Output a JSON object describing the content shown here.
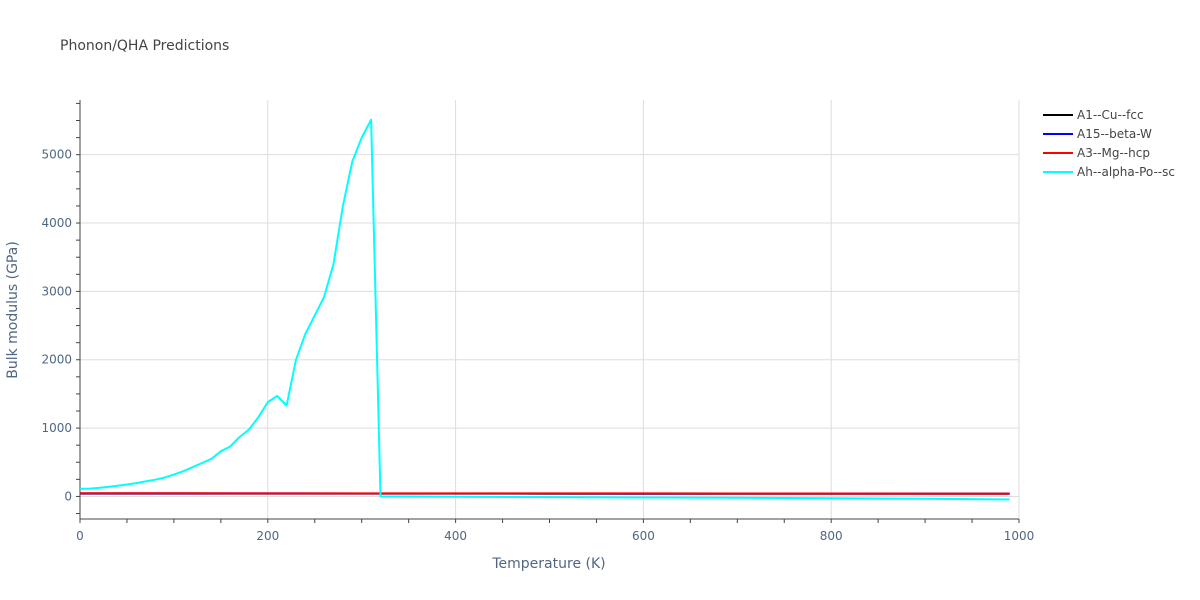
{
  "chart_data": {
    "type": "line",
    "title": "Phonon/QHA Predictions",
    "xlabel": "Temperature (K)",
    "ylabel": "Bulk modulus (GPa)",
    "xlim": [
      0,
      1000
    ],
    "ylim": [
      -330,
      5800
    ],
    "x_ticks": [
      0,
      200,
      400,
      600,
      800,
      1000
    ],
    "y_ticks": [
      0,
      1000,
      2000,
      3000,
      4000,
      5000
    ],
    "grid": true,
    "legend_position": "top-right",
    "series": [
      {
        "name": "A1--Cu--fcc",
        "color": "#000000",
        "x": [
          0,
          100,
          200,
          300,
          400,
          500,
          600,
          700,
          800,
          900,
          990
        ],
        "y": [
          42,
          42,
          42,
          41,
          41,
          40,
          40,
          39,
          39,
          38,
          38
        ]
      },
      {
        "name": "A15--beta-W",
        "color": "#0000ff",
        "x": [
          0,
          100,
          200,
          300,
          400,
          500,
          600,
          700,
          800,
          900,
          990
        ],
        "y": [
          44,
          44,
          44,
          43,
          43,
          43,
          42,
          42,
          42,
          41,
          41
        ]
      },
      {
        "name": "A3--Mg--hcp",
        "color": "#ff0000",
        "x": [
          0,
          100,
          200,
          300,
          400,
          500,
          600,
          700,
          800,
          900,
          990
        ],
        "y": [
          46,
          46,
          45,
          45,
          45,
          44,
          44,
          43,
          43,
          42,
          42
        ]
      },
      {
        "name": "Ah--alpha-Po--sc",
        "color": "#00ffff",
        "x": [
          0,
          10,
          20,
          30,
          40,
          50,
          60,
          70,
          80,
          90,
          100,
          110,
          120,
          130,
          140,
          150,
          160,
          170,
          180,
          190,
          200,
          210,
          220,
          230,
          240,
          250,
          260,
          270,
          280,
          290,
          300,
          310,
          320,
          400,
          500,
          600,
          700,
          800,
          900,
          990
        ],
        "y": [
          110,
          115,
          125,
          140,
          155,
          175,
          195,
          220,
          245,
          275,
          320,
          370,
          430,
          490,
          550,
          660,
          730,
          870,
          980,
          1160,
          1380,
          1470,
          1330,
          2000,
          2380,
          2650,
          2920,
          3400,
          4250,
          4900,
          5250,
          5510,
          0,
          -5,
          -10,
          -15,
          -20,
          -25,
          -35,
          -45
        ]
      }
    ]
  }
}
